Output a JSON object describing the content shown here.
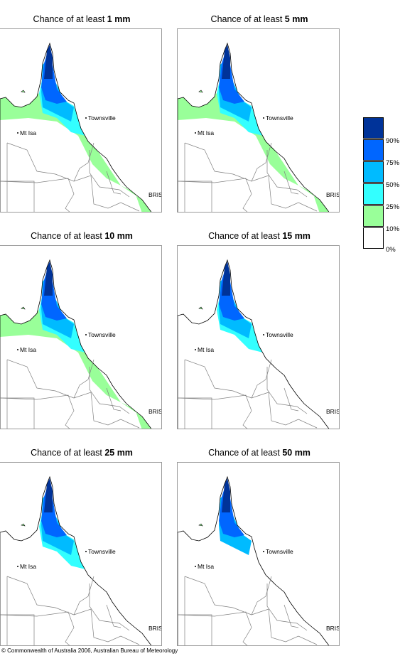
{
  "panels": [
    {
      "title_prefix": "Chance of at least ",
      "amount": "1 mm",
      "pattern": [
        1.0,
        0.65,
        0.45,
        0.3,
        0.18,
        0.1
      ],
      "labels": {
        "townsville": "Townsville",
        "mt_isa": "Mt Isa",
        "bris": "BRIS"
      }
    },
    {
      "title_prefix": "Chance of at least ",
      "amount": "5 mm",
      "pattern": [
        0.75,
        0.5,
        0.35,
        0.22,
        0.12,
        0.06
      ],
      "labels": {
        "townsville": "Townsville",
        "mt_isa": "Mt Isa",
        "bris": "BRIS"
      }
    },
    {
      "title_prefix": "Chance of at least ",
      "amount": "10 mm",
      "pattern": [
        0.65,
        0.42,
        0.28,
        0.18,
        0.1,
        0.04
      ],
      "labels": {
        "townsville": "Townsville",
        "mt_isa": "Mt Isa",
        "bris": "BRIS"
      }
    },
    {
      "title_prefix": "Chance of at least ",
      "amount": "15 mm",
      "pattern": [
        0.55,
        0.38,
        0.25,
        0.15,
        0.08,
        0.03
      ],
      "labels": {
        "townsville": "Townsville",
        "mt_isa": "Mt Isa",
        "bris": "BRIS"
      }
    },
    {
      "title_prefix": "Chance of at least ",
      "amount": "25 mm",
      "pattern": [
        0.45,
        0.32,
        0.22,
        0.12,
        0.06,
        0.02
      ],
      "labels": {
        "townsville": "Townsville",
        "mt_isa": "Mt Isa",
        "bris": "BRIS"
      }
    },
    {
      "title_prefix": "Chance of at least ",
      "amount": "50 mm",
      "pattern": [
        0.3,
        0.2,
        0.12,
        0.06,
        0.02,
        0.0
      ],
      "labels": {
        "townsville": "Townsville",
        "mt_isa": "Mt Isa",
        "bris": "BRIS"
      }
    }
  ],
  "legend": {
    "bands": [
      {
        "color": "#003399",
        "label": ""
      },
      {
        "color": "#0066ff",
        "label": "90%"
      },
      {
        "color": "#00bbff",
        "label": "75%"
      },
      {
        "color": "#33ffff",
        "label": "50%"
      },
      {
        "color": "#99ff99",
        "label": "25%"
      },
      {
        "color": "#ffffff",
        "label": "10%"
      }
    ],
    "bottom_label": "0%"
  },
  "copyright": "© Commonwealth of Australia 2006, Australian Bureau of Meteorology",
  "colors": {
    "land_border": "#808080",
    "coast": "#000000"
  }
}
